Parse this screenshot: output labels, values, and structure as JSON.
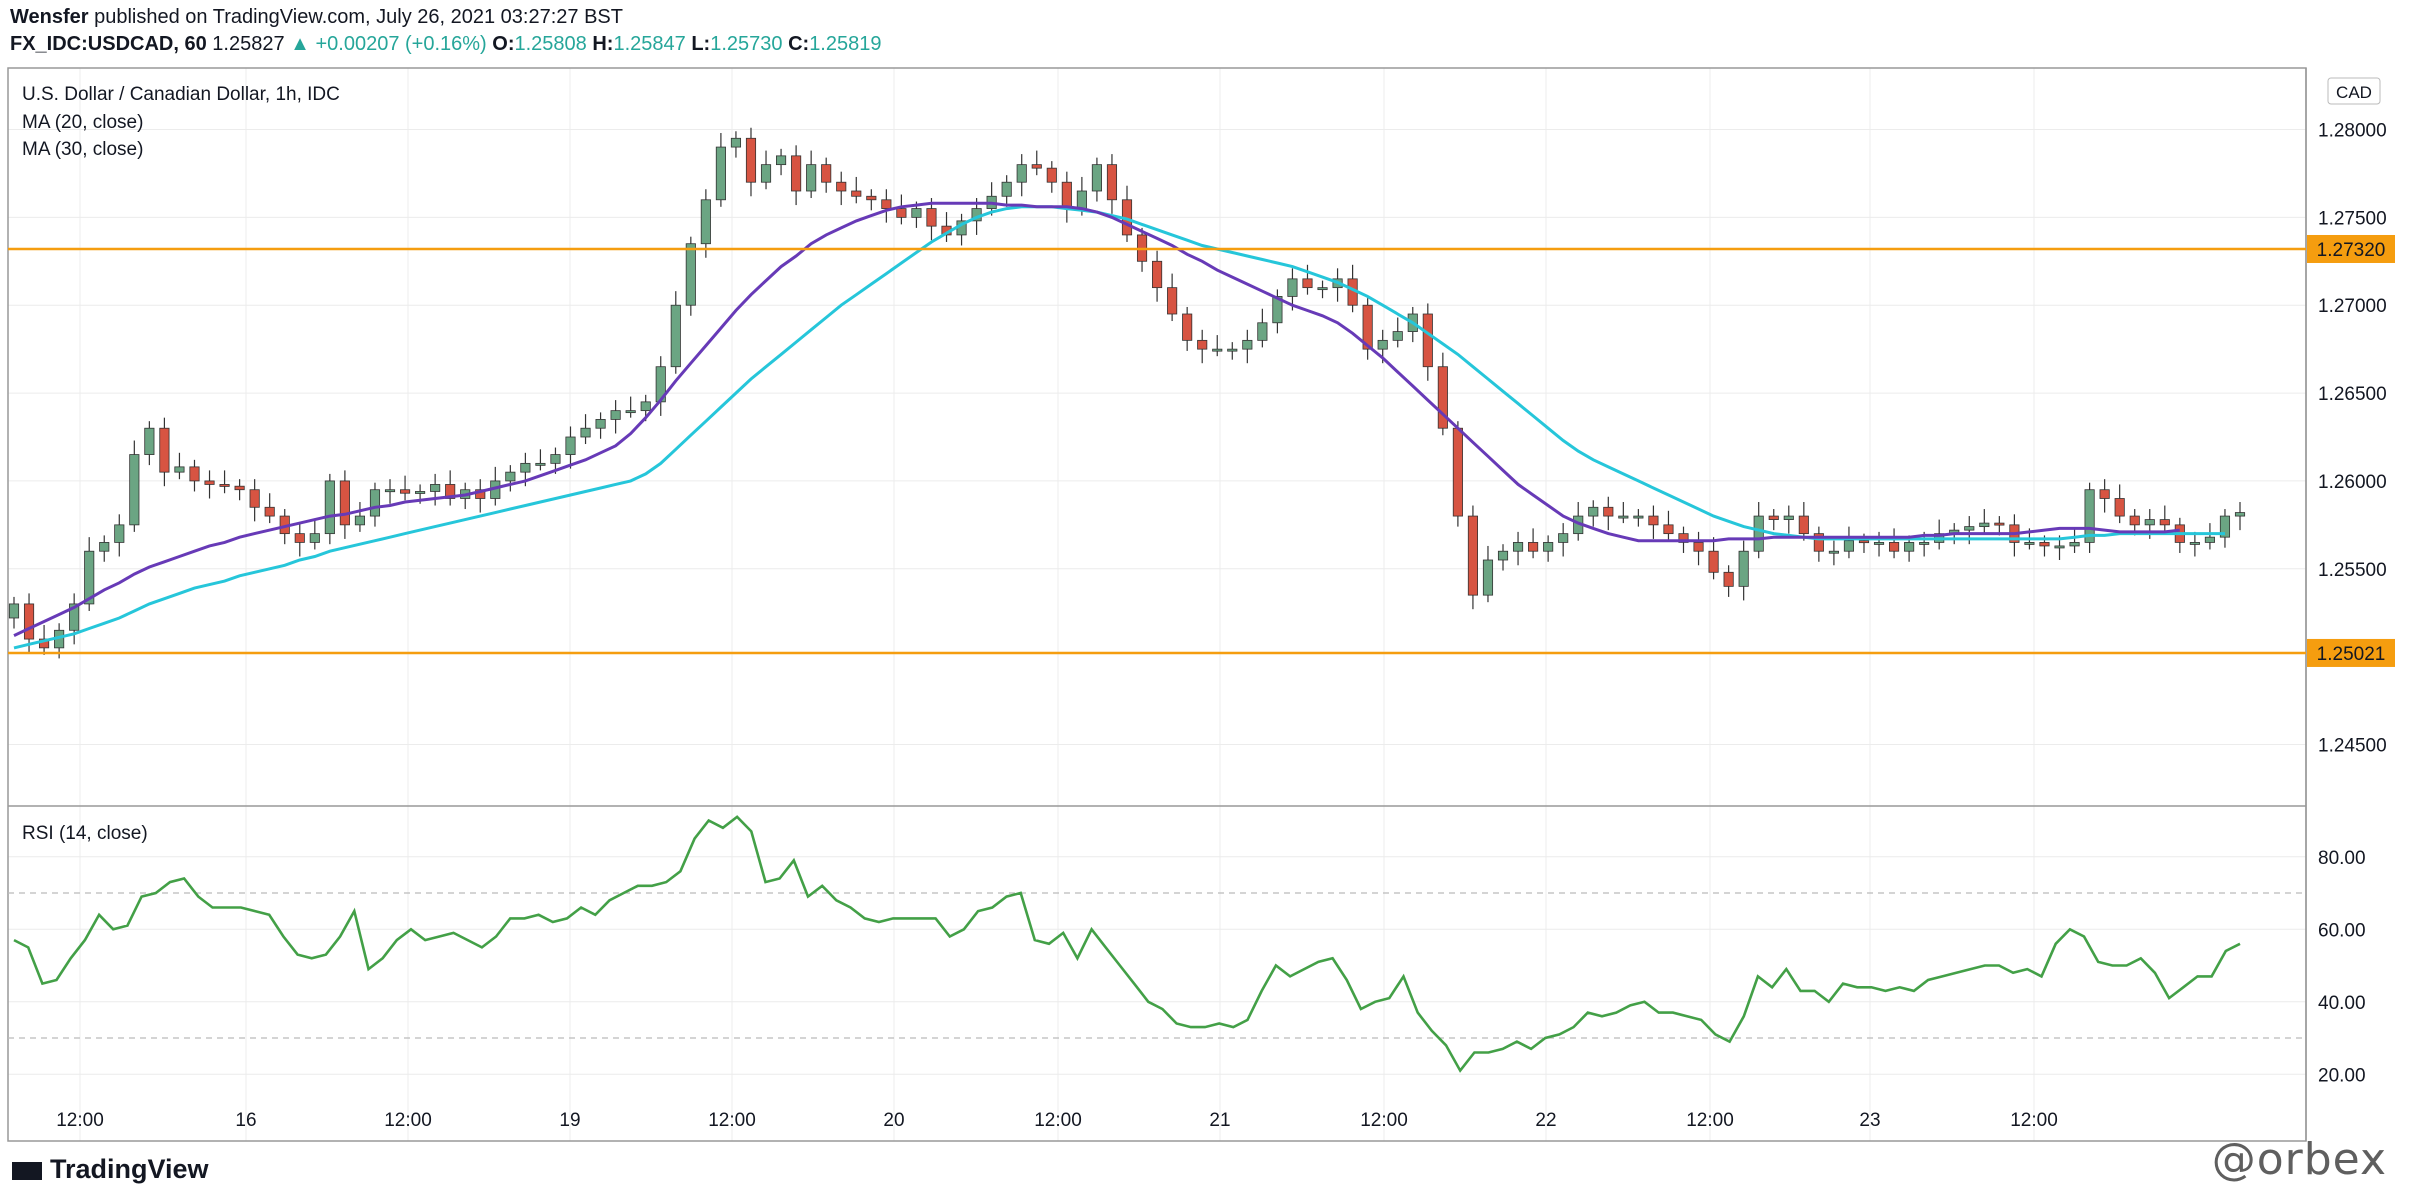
{
  "header": {
    "author": "Wensfer",
    "published_text": "published on TradingView.com, July 26, 2021 03:27:27 BST",
    "symbol": "FX_IDC:USDCAD, 60",
    "last": "1.25827",
    "change": "▲ +0.00207 (+0.16%)",
    "o_label": "O:",
    "o_value": "1.25808",
    "h_label": "H:",
    "h_value": "1.25847",
    "l_label": "L:",
    "l_value": "1.25730",
    "c_label": "C:",
    "c_value": "1.25819"
  },
  "legend": {
    "title": "U.S. Dollar / Canadian Dollar, 1h, IDC",
    "ma20": "MA (20, close)",
    "ma30": "MA (30, close)",
    "rsi": "RSI (14, close)",
    "currency": "CAD"
  },
  "footer": {
    "logo": "TradingView",
    "watermark": "@orbex"
  },
  "colors": {
    "bull": "#6ba583",
    "bear": "#d75442",
    "ma20": "#673ab7",
    "ma30": "#26c6da",
    "level": "#f59d0f",
    "rsi": "#43a047",
    "grid": "#ececec"
  },
  "chart_data": [
    {
      "type": "candlestick",
      "title": "U.S. Dollar / Canadian Dollar, 1h, IDC",
      "x_tick_labels": [
        "12:00",
        "16",
        "12:00",
        "19",
        "12:00",
        "20",
        "12:00",
        "21",
        "12:00",
        "22",
        "12:00",
        "23",
        "12:00"
      ],
      "y_tick_labels": [
        "1.28000",
        "1.27500",
        "1.27000",
        "1.26500",
        "1.26000",
        "1.25500",
        "1.24500"
      ],
      "ylim": [
        1.2415,
        1.2835
      ],
      "horizontal_levels": [
        {
          "value": 1.2732,
          "label": "1.27320"
        },
        {
          "value": 1.25021,
          "label": "1.25021"
        }
      ],
      "series": [
        {
          "name": "MA (20, close)"
        },
        {
          "name": "MA (30, close)"
        }
      ],
      "close": [
        1.253,
        1.251,
        1.2505,
        1.2515,
        1.253,
        1.256,
        1.2565,
        1.2575,
        1.2615,
        1.263,
        1.2605,
        1.2608,
        1.26,
        1.2598,
        1.2597,
        1.2595,
        1.2585,
        1.258,
        1.257,
        1.2565,
        1.257,
        1.26,
        1.2575,
        1.258,
        1.2595,
        1.2595,
        1.2593,
        1.2594,
        1.2598,
        1.259,
        1.2595,
        1.259,
        1.26,
        1.2605,
        1.261,
        1.261,
        1.2615,
        1.2625,
        1.263,
        1.2635,
        1.264,
        1.264,
        1.2645,
        1.2665,
        1.27,
        1.2735,
        1.276,
        1.279,
        1.2795,
        1.277,
        1.278,
        1.2785,
        1.2765,
        1.278,
        1.277,
        1.2765,
        1.2762,
        1.276,
        1.2755,
        1.275,
        1.2755,
        1.2745,
        1.274,
        1.2748,
        1.2755,
        1.2762,
        1.277,
        1.278,
        1.2778,
        1.277,
        1.2755,
        1.2765,
        1.278,
        1.276,
        1.274,
        1.2725,
        1.271,
        1.2695,
        1.268,
        1.2675,
        1.2675,
        1.2675,
        1.268,
        1.269,
        1.2705,
        1.2715,
        1.271,
        1.271,
        1.2715,
        1.27,
        1.2675,
        1.268,
        1.2685,
        1.2695,
        1.2665,
        1.263,
        1.258,
        1.2535,
        1.2555,
        1.256,
        1.2565,
        1.256,
        1.2565,
        1.257,
        1.258,
        1.2585,
        1.258,
        1.258,
        1.258,
        1.2575,
        1.257,
        1.2565,
        1.256,
        1.2548,
        1.254,
        1.256,
        1.258,
        1.2578,
        1.258,
        1.257,
        1.256,
        1.256,
        1.2566,
        1.2565,
        1.2565,
        1.256,
        1.2565,
        1.2565,
        1.257,
        1.2572,
        1.2574,
        1.2576,
        1.2575,
        1.2565,
        1.2565,
        1.2563,
        1.2563,
        1.2565,
        1.2595,
        1.259,
        1.258,
        1.2575,
        1.2578,
        1.2575,
        1.2565,
        1.2565,
        1.2568,
        1.258,
        1.2582
      ],
      "ma20_approx": [
        1.2512,
        1.2516,
        1.252,
        1.2524,
        1.2528,
        1.2533,
        1.2538,
        1.2542,
        1.2547,
        1.2551,
        1.2554,
        1.2557,
        1.256,
        1.2563,
        1.2565,
        1.2568,
        1.257,
        1.2572,
        1.2574,
        1.2576,
        1.2578,
        1.258,
        1.2581,
        1.2583,
        1.2585,
        1.2586,
        1.2588,
        1.2589,
        1.259,
        1.2591,
        1.2592,
        1.2594,
        1.2596,
        1.2598,
        1.26,
        1.2603,
        1.2606,
        1.2609,
        1.2612,
        1.2616,
        1.262,
        1.2627,
        1.2636,
        1.2646,
        1.2657,
        1.2667,
        1.2677,
        1.2687,
        1.2697,
        1.2706,
        1.2714,
        1.2722,
        1.2728,
        1.2735,
        1.274,
        1.2744,
        1.2748,
        1.2751,
        1.2754,
        1.2756,
        1.2757,
        1.2758,
        1.2758,
        1.2758,
        1.2758,
        1.2758,
        1.2757,
        1.2757,
        1.2756,
        1.2756,
        1.2756,
        1.2755,
        1.2753,
        1.275,
        1.2746,
        1.2742,
        1.2738,
        1.2734,
        1.2729,
        1.2725,
        1.272,
        1.2716,
        1.2712,
        1.2708,
        1.2704,
        1.27,
        1.2697,
        1.2694,
        1.269,
        1.2684,
        1.2677,
        1.267,
        1.2662,
        1.2654,
        1.2646,
        1.2638,
        1.263,
        1.2622,
        1.2614,
        1.2606,
        1.2598,
        1.2592,
        1.2586,
        1.258,
        1.2576,
        1.2573,
        1.257,
        1.2568,
        1.2566,
        1.2566,
        1.2566,
        1.2566,
        1.2566,
        1.2566,
        1.2567,
        1.2567,
        1.2567,
        1.2568,
        1.2568,
        1.2568,
        1.2568,
        1.2568,
        1.2568,
        1.2568,
        1.2568,
        1.2568,
        1.2568,
        1.2569,
        1.2569,
        1.257,
        1.257,
        1.257,
        1.257,
        1.257,
        1.2571,
        1.2572,
        1.2573,
        1.2573,
        1.2573,
        1.2572,
        1.2571,
        1.2571,
        1.2571,
        1.2571,
        1.2572
      ],
      "ma30_approx": [
        1.2505,
        1.2507,
        1.2509,
        1.2511,
        1.2513,
        1.2516,
        1.2519,
        1.2522,
        1.2526,
        1.253,
        1.2533,
        1.2536,
        1.2539,
        1.2541,
        1.2543,
        1.2546,
        1.2548,
        1.255,
        1.2552,
        1.2555,
        1.2557,
        1.256,
        1.2562,
        1.2564,
        1.2566,
        1.2568,
        1.257,
        1.2572,
        1.2574,
        1.2576,
        1.2578,
        1.258,
        1.2582,
        1.2584,
        1.2586,
        1.2588,
        1.259,
        1.2592,
        1.2594,
        1.2596,
        1.2598,
        1.26,
        1.2604,
        1.261,
        1.2618,
        1.2626,
        1.2634,
        1.2642,
        1.265,
        1.2658,
        1.2665,
        1.2672,
        1.2679,
        1.2686,
        1.2693,
        1.27,
        1.2706,
        1.2712,
        1.2718,
        1.2724,
        1.273,
        1.2736,
        1.2741,
        1.2746,
        1.275,
        1.2753,
        1.2755,
        1.2756,
        1.2756,
        1.2756,
        1.2755,
        1.2754,
        1.2753,
        1.2751,
        1.2749,
        1.2746,
        1.2743,
        1.274,
        1.2737,
        1.2734,
        1.2732,
        1.273,
        1.2728,
        1.2726,
        1.2724,
        1.2722,
        1.2719,
        1.2716,
        1.2713,
        1.2709,
        1.2705,
        1.27,
        1.2695,
        1.269,
        1.2684,
        1.2678,
        1.2672,
        1.2665,
        1.2658,
        1.2651,
        1.2644,
        1.2637,
        1.263,
        1.2623,
        1.2617,
        1.2612,
        1.2608,
        1.2604,
        1.26,
        1.2596,
        1.2592,
        1.2588,
        1.2584,
        1.258,
        1.2577,
        1.2574,
        1.2572,
        1.257,
        1.2569,
        1.2568,
        1.2567,
        1.2567,
        1.2567,
        1.2567,
        1.2567,
        1.2567,
        1.2567,
        1.2567,
        1.2567,
        1.2567,
        1.2567,
        1.2567,
        1.2567,
        1.2567,
        1.2567,
        1.2567,
        1.2567,
        1.2568,
        1.2569,
        1.2569,
        1.257,
        1.257,
        1.257,
        1.257,
        1.257,
        1.257,
        1.257,
        1.257
      ]
    },
    {
      "type": "line",
      "title": "RSI (14, close)",
      "y_tick_labels": [
        "80.00",
        "60.00",
        "40.00",
        "20.00"
      ],
      "ylim": [
        14,
        94
      ],
      "reference_lines": [
        70,
        30
      ],
      "series": [
        {
          "name": "RSI (14, close)",
          "values": [
            57,
            55,
            45,
            46,
            52,
            57,
            64,
            60,
            61,
            69,
            70,
            73,
            74,
            69,
            66,
            66,
            66,
            65,
            64,
            58,
            53,
            52,
            53,
            58,
            65,
            49,
            52,
            57,
            60,
            57,
            58,
            59,
            57,
            55,
            58,
            63,
            63,
            64,
            62,
            63,
            66,
            64,
            68,
            70,
            72,
            72,
            73,
            76,
            85,
            90,
            88,
            91,
            87,
            73,
            74,
            79,
            69,
            72,
            68,
            66,
            63,
            62,
            63,
            63,
            63,
            63,
            58,
            60,
            65,
            66,
            69,
            70,
            57,
            56,
            59,
            52,
            60,
            55,
            50,
            45,
            40,
            38,
            34,
            33,
            33,
            34,
            33,
            35,
            43,
            50,
            47,
            49,
            51,
            52,
            46,
            38,
            40,
            41,
            47,
            37,
            32,
            28,
            21,
            26,
            26,
            27,
            29,
            27,
            30,
            31,
            33,
            37,
            36,
            37,
            39,
            40,
            37,
            37,
            36,
            35,
            31,
            29,
            36,
            47,
            44,
            49,
            43,
            43,
            40,
            45,
            44,
            44,
            43,
            44,
            43,
            46,
            47,
            48,
            49,
            50,
            50,
            48,
            49,
            47,
            56,
            60,
            58,
            51,
            50,
            50,
            52,
            48,
            41,
            44,
            47,
            47,
            54,
            56
          ]
        }
      ]
    }
  ]
}
